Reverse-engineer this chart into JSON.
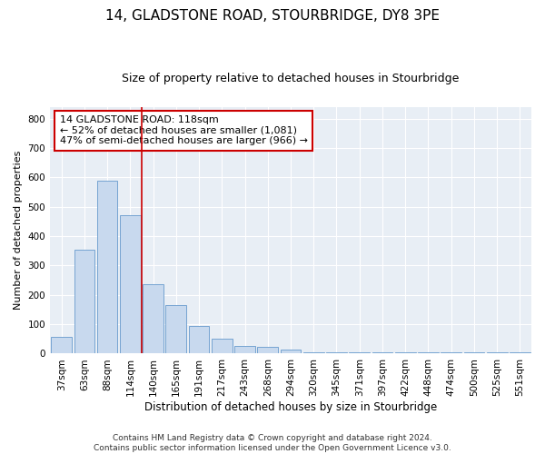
{
  "title1": "14, GLADSTONE ROAD, STOURBRIDGE, DY8 3PE",
  "title2": "Size of property relative to detached houses in Stourbridge",
  "xlabel": "Distribution of detached houses by size in Stourbridge",
  "ylabel": "Number of detached properties",
  "footnote1": "Contains HM Land Registry data © Crown copyright and database right 2024.",
  "footnote2": "Contains public sector information licensed under the Open Government Licence v3.0.",
  "annotation_line1": "14 GLADSTONE ROAD: 118sqm",
  "annotation_line2": "← 52% of detached houses are smaller (1,081)",
  "annotation_line3": "47% of semi-detached houses are larger (966) →",
  "bar_color": "#c8d9ee",
  "bar_edge_color": "#6699cc",
  "vline_color": "#cc0000",
  "vline_x": 3.5,
  "categories": [
    "37sqm",
    "63sqm",
    "88sqm",
    "114sqm",
    "140sqm",
    "165sqm",
    "191sqm",
    "217sqm",
    "243sqm",
    "268sqm",
    "294sqm",
    "320sqm",
    "345sqm",
    "371sqm",
    "397sqm",
    "422sqm",
    "448sqm",
    "474sqm",
    "500sqm",
    "525sqm",
    "551sqm"
  ],
  "values": [
    58,
    355,
    590,
    470,
    235,
    165,
    95,
    50,
    25,
    22,
    15,
    5,
    5,
    5,
    5,
    5,
    5,
    5,
    5,
    5,
    5
  ],
  "ylim": [
    0,
    840
  ],
  "yticks": [
    0,
    100,
    200,
    300,
    400,
    500,
    600,
    700,
    800
  ],
  "bg_color": "#e8eef5",
  "grid_color": "#ffffff",
  "title1_fontsize": 11,
  "title2_fontsize": 9,
  "annotation_fontsize": 8,
  "axis_label_fontsize": 8,
  "tick_fontsize": 7.5,
  "footnote_fontsize": 6.5
}
